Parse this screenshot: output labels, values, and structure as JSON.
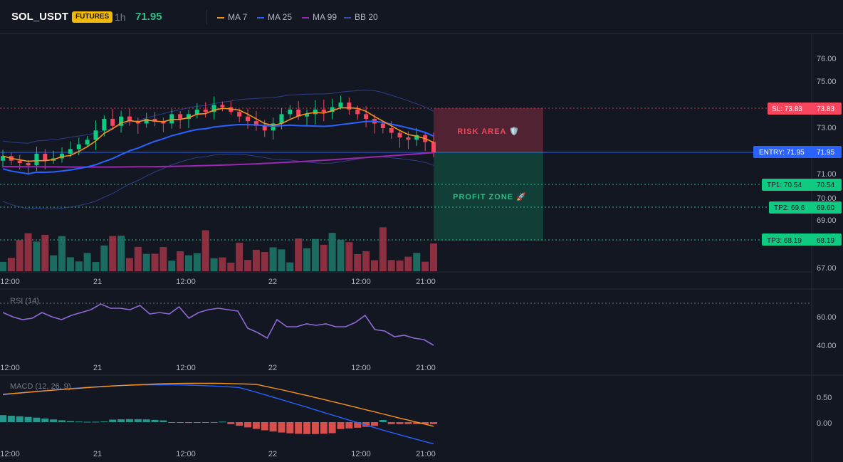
{
  "header": {
    "symbol": "SOL_USDT",
    "badge": "FUTURES",
    "timeframe": "1h",
    "price": "71.95",
    "indicators": [
      {
        "label": "MA 7",
        "color": "#f7931a"
      },
      {
        "label": "MA 25",
        "color": "#2962ff"
      },
      {
        "label": "MA 99",
        "color": "#9c27b0"
      },
      {
        "label": "BB 20",
        "color": "#3b4fb8"
      }
    ]
  },
  "chart_data": [
    {
      "type": "candlestick",
      "title": "SOL_USDT",
      "y_axis_ticks": [
        "76.00",
        "75.00",
        "73.00",
        "71.00",
        "70.00",
        "69.00",
        "67.00"
      ],
      "x_axis_ticks": [
        "12:00",
        "21",
        "12:00",
        "22",
        "12:00",
        "21:00"
      ],
      "close_series": [
        71.8,
        71.6,
        71.5,
        71.4,
        71.9,
        71.6,
        71.7,
        71.9,
        72.1,
        72.3,
        72.5,
        72.9,
        73.4,
        73.1,
        73.5,
        73.3,
        73.2,
        73.4,
        73.3,
        73.2,
        73.6,
        73.4,
        73.6,
        73.8,
        73.7,
        74.0,
        73.9,
        73.7,
        73.5,
        73.3,
        73.1,
        72.9,
        73.2,
        73.6,
        73.8,
        73.5,
        73.6,
        73.8,
        73.7,
        73.9,
        74.1,
        73.8,
        73.6,
        73.4,
        73.2,
        73.0,
        72.8,
        72.6,
        72.5,
        72.7,
        72.4,
        71.95
      ],
      "volume_bars": 52,
      "annotations": {
        "stop_loss": {
          "label": "SL: 73.83",
          "value": "73.83"
        },
        "entry": {
          "label": "ENTRY: 71.95",
          "value": "71.95"
        },
        "take_profits": [
          {
            "label": "TP1: 70.54",
            "value": "70.54"
          },
          {
            "label": "TP2: 69.6",
            "value": "69.60"
          },
          {
            "label": "TP3: 68.19",
            "value": "68.19"
          }
        ],
        "risk_label": "RISK AREA 🛡️",
        "profit_label": "PROFIT ZONE 🚀"
      }
    },
    {
      "type": "line",
      "title": "RSI (14)",
      "y_axis_ticks": [
        "60.00",
        "40.00"
      ],
      "x_axis_ticks": [
        "12:00",
        "21",
        "12:00",
        "22",
        "12:00",
        "21:00"
      ],
      "values": [
        63,
        60,
        58,
        59,
        63,
        60,
        58,
        61,
        63,
        65,
        69,
        66,
        66,
        65,
        68,
        62,
        63,
        62,
        67,
        59,
        63,
        65,
        66,
        65,
        64,
        52,
        49,
        45,
        58,
        53,
        53,
        55,
        54,
        55,
        53,
        53,
        56,
        61,
        51,
        50,
        46,
        47,
        45,
        44,
        40
      ]
    },
    {
      "type": "bar",
      "title": "MACD (12, 26, 9)",
      "y_axis_ticks": [
        "0.50",
        "0.00"
      ],
      "x_axis_ticks": [
        "12:00",
        "21",
        "12:00",
        "22",
        "12:00",
        "21:00"
      ]
    }
  ]
}
